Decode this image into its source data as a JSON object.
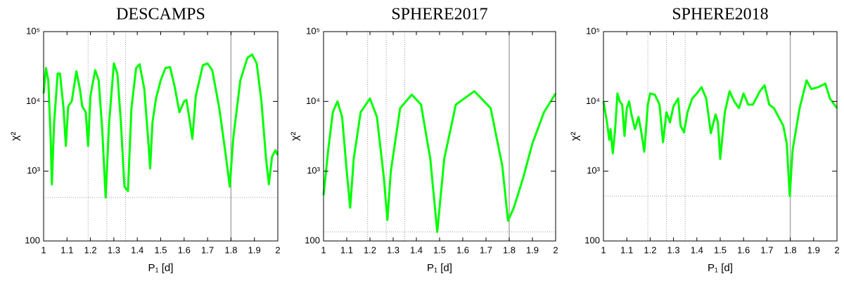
{
  "chart_data": [
    {
      "type": "line",
      "title": "DESCAMPS",
      "xlabel": "P₁ [d]",
      "ylabel": "χ²",
      "log_y": true,
      "color": "#00ff00",
      "xlim": [
        1,
        2
      ],
      "ylim": [
        100,
        100000
      ],
      "xticks": [
        1,
        1.1,
        1.2,
        1.3,
        1.4,
        1.5,
        1.6,
        1.7,
        1.8,
        1.9,
        2
      ],
      "yticks": [
        100,
        {
          "value": 1000,
          "label": "10³"
        },
        {
          "value": 10000,
          "label": "10⁴"
        },
        {
          "value": 100000,
          "label": "10⁵"
        }
      ],
      "vlines": [
        1.19,
        1.27,
        1.35
      ],
      "vline_solid": 1.8,
      "hline": 420,
      "x": [
        1.0,
        1.01,
        1.02,
        1.03,
        1.035,
        1.045,
        1.06,
        1.07,
        1.085,
        1.095,
        1.105,
        1.12,
        1.14,
        1.155,
        1.165,
        1.18,
        1.19,
        1.2,
        1.22,
        1.235,
        1.25,
        1.265,
        1.28,
        1.3,
        1.315,
        1.33,
        1.345,
        1.36,
        1.375,
        1.395,
        1.41,
        1.43,
        1.45,
        1.455,
        1.465,
        1.48,
        1.5,
        1.52,
        1.54,
        1.56,
        1.58,
        1.6,
        1.61,
        1.625,
        1.635,
        1.65,
        1.68,
        1.7,
        1.72,
        1.75,
        1.78,
        1.795,
        1.81,
        1.84,
        1.87,
        1.89,
        1.91,
        1.93,
        1.95,
        1.962,
        1.975,
        1.99,
        2.0
      ],
      "values": [
        13000,
        30000,
        20000,
        3000,
        650,
        5000,
        25000,
        25000,
        8000,
        2300,
        8500,
        10000,
        27000,
        15000,
        8500,
        7000,
        2300,
        12000,
        28000,
        20000,
        4000,
        420,
        5000,
        35000,
        25000,
        5000,
        600,
        520,
        8000,
        30000,
        34000,
        15000,
        2000,
        1100,
        5000,
        11000,
        20000,
        30000,
        31000,
        16000,
        7000,
        10000,
        10500,
        5000,
        2900,
        12000,
        33000,
        35000,
        28000,
        8000,
        1500,
        600,
        3000,
        20000,
        42000,
        47000,
        35000,
        10000,
        1500,
        650,
        1600,
        2000,
        1700
      ]
    },
    {
      "type": "line",
      "title": "SPHERE2017",
      "xlabel": "P₁ [d]",
      "ylabel": "χ²",
      "log_y": true,
      "color": "#00ff00",
      "xlim": [
        1,
        2
      ],
      "ylim": [
        100,
        100000
      ],
      "xticks": [
        1,
        1.1,
        1.2,
        1.3,
        1.4,
        1.5,
        1.6,
        1.7,
        1.8,
        1.9,
        2
      ],
      "yticks": [
        100,
        {
          "value": 1000,
          "label": "10³"
        },
        {
          "value": 10000,
          "label": "10⁴"
        },
        {
          "value": 100000,
          "label": "10⁵"
        }
      ],
      "vlines": [
        1.19,
        1.27,
        1.35
      ],
      "vline_solid": 1.8,
      "hline": 135,
      "x": [
        1.0,
        1.02,
        1.04,
        1.06,
        1.08,
        1.1,
        1.115,
        1.13,
        1.16,
        1.2,
        1.23,
        1.26,
        1.275,
        1.29,
        1.33,
        1.38,
        1.42,
        1.46,
        1.49,
        1.52,
        1.57,
        1.65,
        1.72,
        1.77,
        1.795,
        1.82,
        1.86,
        1.9,
        1.95,
        2.0
      ],
      "values": [
        450,
        2000,
        7000,
        10000,
        6000,
        1000,
        300,
        1500,
        7000,
        11000,
        6000,
        800,
        200,
        1000,
        8000,
        12500,
        9000,
        1500,
        135,
        1500,
        9000,
        14000,
        8000,
        1200,
        195,
        300,
        800,
        2500,
        7000,
        13000
      ]
    },
    {
      "type": "line",
      "title": "SPHERE2018",
      "xlabel": "P₁ [d]",
      "ylabel": "χ²",
      "log_y": true,
      "color": "#00ff00",
      "xlim": [
        1,
        2
      ],
      "ylim": [
        100,
        100000
      ],
      "xticks": [
        1,
        1.1,
        1.2,
        1.3,
        1.4,
        1.5,
        1.6,
        1.7,
        1.8,
        1.9,
        2
      ],
      "yticks": [
        100,
        {
          "value": 1000,
          "label": "10³"
        },
        {
          "value": 10000,
          "label": "10⁴"
        },
        {
          "value": 100000,
          "label": "10⁵"
        }
      ],
      "vlines": [
        1.19,
        1.27,
        1.35
      ],
      "vline_solid": 1.8,
      "hline": 440,
      "x": [
        1.0,
        1.015,
        1.025,
        1.03,
        1.04,
        1.05,
        1.06,
        1.07,
        1.08,
        1.09,
        1.1,
        1.11,
        1.12,
        1.135,
        1.15,
        1.16,
        1.175,
        1.19,
        1.2,
        1.22,
        1.24,
        1.255,
        1.27,
        1.285,
        1.3,
        1.32,
        1.33,
        1.345,
        1.36,
        1.38,
        1.4,
        1.42,
        1.44,
        1.46,
        1.48,
        1.49,
        1.5,
        1.52,
        1.54,
        1.56,
        1.58,
        1.6,
        1.62,
        1.64,
        1.67,
        1.69,
        1.71,
        1.73,
        1.75,
        1.77,
        1.785,
        1.798,
        1.81,
        1.84,
        1.87,
        1.89,
        1.92,
        1.95,
        1.97,
        2.0
      ],
      "values": [
        10000,
        5000,
        2800,
        4000,
        1800,
        4000,
        13000,
        10000,
        9000,
        3200,
        8000,
        10000,
        6500,
        4000,
        6000,
        4000,
        1900,
        9000,
        13000,
        12500,
        9000,
        2600,
        7000,
        5000,
        8500,
        11000,
        4500,
        3600,
        7000,
        11000,
        13000,
        16000,
        11000,
        3500,
        6500,
        5000,
        1500,
        7000,
        14000,
        10000,
        8000,
        13000,
        9000,
        9000,
        14000,
        17000,
        9000,
        8000,
        6000,
        4500,
        2500,
        440,
        2000,
        8000,
        20000,
        15000,
        16000,
        18000,
        11000,
        8000
      ]
    }
  ]
}
